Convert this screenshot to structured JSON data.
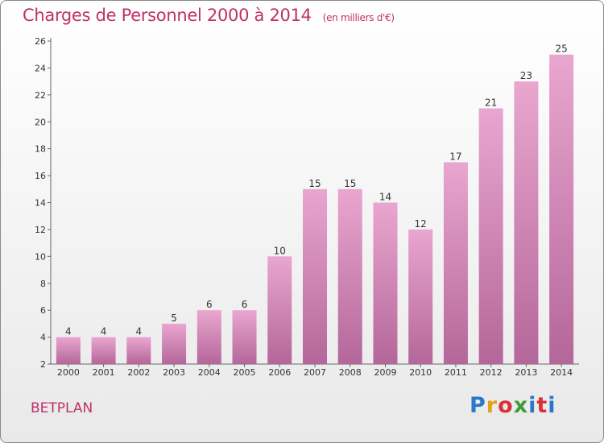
{
  "header": {
    "title": "Charges de Personnel 2000 à 2014",
    "subtitle": "(en milliers d'€)"
  },
  "footer": {
    "commune": "BETPLAN",
    "logo": [
      "P",
      "r",
      "o",
      "x",
      "i",
      "t",
      "i"
    ]
  },
  "colors": {
    "title": "#c0306a",
    "bar_top": "#e9a6cf",
    "bar_bottom": "#b4679a"
  },
  "chart_data": {
    "type": "bar",
    "title": "Charges de Personnel 2000 à 2014",
    "subtitle": "(en milliers d'€)",
    "categories": [
      "2000",
      "2001",
      "2002",
      "2003",
      "2004",
      "2005",
      "2006",
      "2007",
      "2008",
      "2009",
      "2010",
      "2011",
      "2012",
      "2013",
      "2014"
    ],
    "values": [
      4,
      4,
      4,
      5,
      6,
      6,
      10,
      15,
      15,
      14,
      12,
      17,
      21,
      23,
      25
    ],
    "ylim": [
      2,
      26
    ],
    "yticks": [
      2,
      4,
      6,
      8,
      10,
      12,
      14,
      16,
      18,
      20,
      22,
      24,
      26
    ],
    "grid": false,
    "data_labels": true
  }
}
